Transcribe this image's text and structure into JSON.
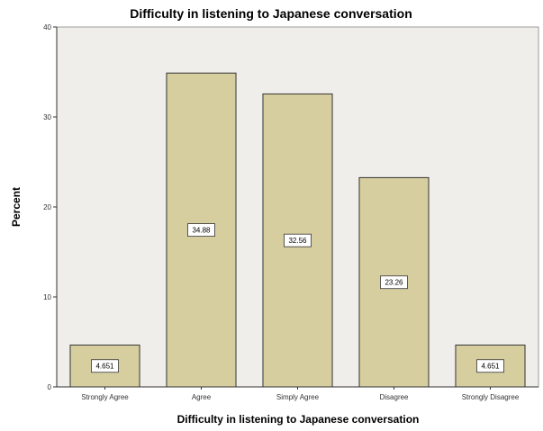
{
  "chart_data": {
    "type": "bar",
    "title": "Difficulty in listening to Japanese conversation",
    "xlabel": "Difficulty in listening to Japanese conversation",
    "ylabel": "Percent",
    "categories": [
      "Strongly Agree",
      "Agree",
      "Simply Agree",
      "Disagree",
      "Strongly Disagree"
    ],
    "values": [
      4.651,
      34.88,
      32.56,
      23.26,
      4.651
    ],
    "data_labels": [
      "4.651",
      "34.88",
      "32.56",
      "23.26",
      "4.651"
    ],
    "ylim": [
      0,
      40
    ],
    "yticks": [
      0,
      10,
      20,
      30,
      40
    ],
    "grid": false,
    "colors": {
      "plot_background": "#efeeea",
      "bar_fill": "#d7cea0",
      "bar_stroke": "#333333"
    }
  }
}
